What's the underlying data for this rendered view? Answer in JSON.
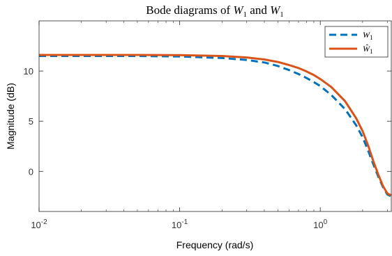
{
  "chart_data": {
    "type": "line",
    "title": "Bode diagrams of W1 and W1",
    "title_parts": {
      "prefix": "Bode diagrams of ",
      "sym1": "W",
      "sub1": "1",
      "mid": " and ",
      "sym2": "W",
      "sub2": "1"
    },
    "xlabel": "Frequency (rad/s)",
    "ylabel": "Magnitude (dB)",
    "xscale": "log",
    "xlim": [
      0.01,
      3.2
    ],
    "ylim": [
      -4,
      15
    ],
    "xticks": [
      {
        "value": 0.01,
        "base": "10",
        "exp": "-2"
      },
      {
        "value": 0.1,
        "base": "10",
        "exp": "-1"
      },
      {
        "value": 1,
        "base": "10",
        "exp": "0"
      }
    ],
    "yticks": [
      {
        "value": 0,
        "label": "0"
      },
      {
        "value": 5,
        "label": "5"
      },
      {
        "value": 10,
        "label": "10"
      }
    ],
    "grid": false,
    "legend_position": "top-right",
    "series": [
      {
        "name": "W1",
        "legend_symbol": "W",
        "legend_sub": "1",
        "hat": false,
        "color": "#0072BD",
        "style": "dashed",
        "x": [
          0.01,
          0.02,
          0.05,
          0.1,
          0.2,
          0.3,
          0.4,
          0.5,
          0.6,
          0.7,
          0.8,
          0.9,
          1.0,
          1.2,
          1.5,
          1.8,
          2.0,
          2.2,
          2.4,
          2.6,
          2.8,
          3.0,
          3.2
        ],
        "values": [
          11.5,
          11.5,
          11.5,
          11.45,
          11.3,
          11.1,
          10.85,
          10.5,
          10.1,
          9.7,
          9.3,
          8.9,
          8.5,
          7.6,
          6.2,
          4.6,
          3.4,
          2.0,
          0.6,
          -0.6,
          -1.6,
          -2.3,
          -2.5
        ]
      },
      {
        "name": "Ŵ1",
        "legend_symbol": "Ŵ",
        "legend_sub": "1",
        "hat": true,
        "color": "#D95319",
        "style": "solid",
        "x": [
          0.01,
          0.02,
          0.05,
          0.1,
          0.2,
          0.3,
          0.4,
          0.5,
          0.6,
          0.7,
          0.8,
          0.9,
          1.0,
          1.2,
          1.5,
          1.8,
          2.0,
          2.2,
          2.4,
          2.6,
          2.8,
          3.0,
          3.2
        ],
        "values": [
          11.6,
          11.6,
          11.6,
          11.58,
          11.5,
          11.35,
          11.15,
          10.9,
          10.6,
          10.3,
          9.95,
          9.6,
          9.2,
          8.4,
          7.0,
          5.3,
          4.0,
          2.5,
          0.9,
          -0.4,
          -1.5,
          -2.2,
          -2.4
        ]
      }
    ]
  }
}
